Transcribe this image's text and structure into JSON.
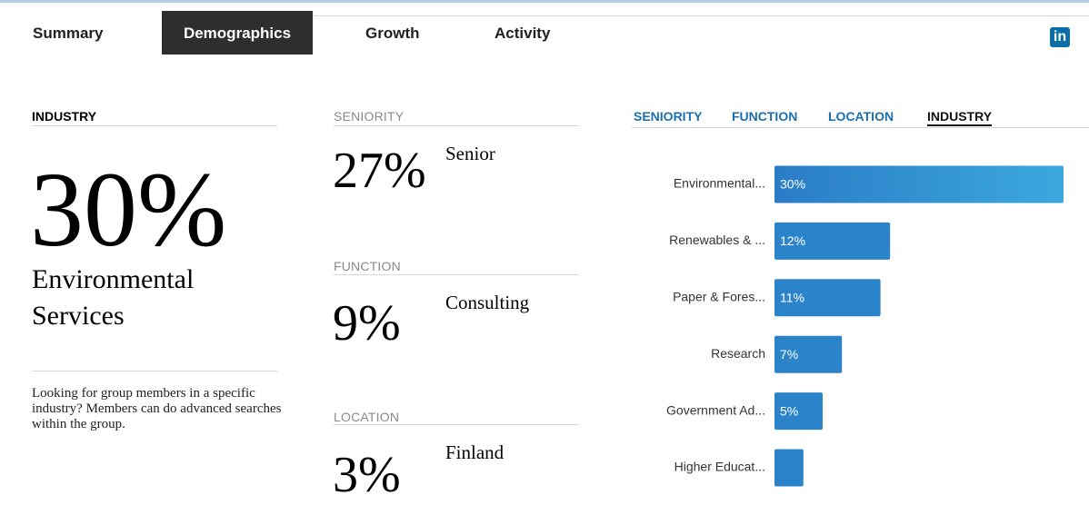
{
  "tabs": [
    "Summary",
    "Demographics",
    "Growth",
    "Activity"
  ],
  "industry_panel": {
    "heading": "INDUSTRY",
    "percent": "30%",
    "name": "Environmental Services",
    "description": "Looking for group members in a specific industry? Members can do advanced searches within the group."
  },
  "stats": [
    {
      "heading": "SENIORITY",
      "percent": "27%",
      "label": "Senior"
    },
    {
      "heading": "FUNCTION",
      "percent": "9%",
      "label": "Consulting"
    },
    {
      "heading": "LOCATION",
      "percent": "3%",
      "label": "Finland"
    }
  ],
  "chart_tabs": [
    "SENIORITY",
    "FUNCTION",
    "LOCATION",
    "INDUSTRY"
  ],
  "chart_data": {
    "type": "bar",
    "orientation": "horizontal",
    "categories": [
      "Environmental...",
      "Renewables & ...",
      "Paper & Fores...",
      "Research",
      "Government Ad...",
      "Higher Educat..."
    ],
    "values": [
      30,
      12,
      11,
      7,
      5,
      3
    ],
    "value_labels": [
      "30%",
      "12%",
      "11%",
      "7%",
      "5%",
      null
    ],
    "color": "#2b84ca"
  }
}
